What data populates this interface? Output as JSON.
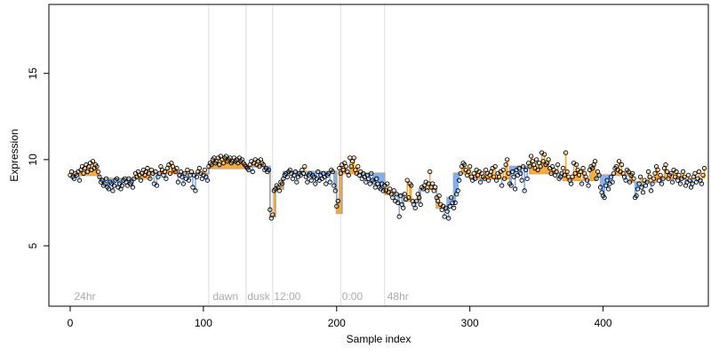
{
  "chart_data": {
    "type": "scatter",
    "xlabel": "Sample index",
    "ylabel": "Expression",
    "xlim": [
      -16,
      479
    ],
    "ylim": [
      1.5,
      19.0
    ],
    "x_ticks": [
      0,
      100,
      200,
      300,
      400
    ],
    "y_ticks": [
      5,
      10,
      15
    ],
    "grid": false,
    "legend": "none",
    "segment_boundaries": [
      104,
      132,
      152,
      203,
      236
    ],
    "segment_labels": [
      {
        "x": 3,
        "text": "24hr"
      },
      {
        "x": 107,
        "text": "dawn"
      },
      {
        "x": 133,
        "text": "dusk"
      },
      {
        "x": 153,
        "text": "12:00"
      },
      {
        "x": 204,
        "text": "0:00"
      },
      {
        "x": 238,
        "text": "48hr"
      }
    ],
    "baseline_levels": [
      {
        "from": 0,
        "to": 22,
        "value": 9.1
      },
      {
        "from": 22,
        "to": 60,
        "value": 8.9
      },
      {
        "from": 60,
        "to": 104,
        "value": 9.2
      },
      {
        "from": 104,
        "to": 132,
        "value": 9.5
      },
      {
        "from": 132,
        "to": 150,
        "value": 9.6
      },
      {
        "from": 150,
        "to": 154,
        "value": 6.7
      },
      {
        "from": 154,
        "to": 160,
        "value": 8.3
      },
      {
        "from": 160,
        "to": 200,
        "value": 9.3
      },
      {
        "from": 200,
        "to": 204,
        "value": 6.9
      },
      {
        "from": 204,
        "to": 236,
        "value": 9.2
      },
      {
        "from": 236,
        "to": 250,
        "value": 8.0
      },
      {
        "from": 250,
        "to": 262,
        "value": 7.6
      },
      {
        "from": 262,
        "to": 275,
        "value": 8.3
      },
      {
        "from": 275,
        "to": 283,
        "value": 7.2
      },
      {
        "from": 283,
        "to": 288,
        "value": 7.8
      },
      {
        "from": 288,
        "to": 300,
        "value": 9.2
      },
      {
        "from": 300,
        "to": 330,
        "value": 8.9
      },
      {
        "from": 330,
        "to": 345,
        "value": 9.6
      },
      {
        "from": 345,
        "to": 370,
        "value": 9.2
      },
      {
        "from": 370,
        "to": 395,
        "value": 8.8
      },
      {
        "from": 395,
        "to": 420,
        "value": 9.1
      },
      {
        "from": 420,
        "to": 440,
        "value": 8.7
      },
      {
        "from": 440,
        "to": 462,
        "value": 8.9
      }
    ],
    "series": [
      {
        "values": [
          9.1,
          9.3,
          9.0,
          8.9,
          9.2,
          9.1,
          9.3,
          8.8,
          9.4,
          9.6,
          9.2,
          9.5,
          9.7,
          9.3,
          9.6,
          9.8,
          9.4,
          9.9,
          9.5,
          9.7,
          9.6,
          9.3,
          9.0,
          8.7,
          8.8,
          8.5,
          8.6,
          8.9,
          8.4,
          8.3,
          8.7,
          8.6,
          8.2,
          8.5,
          8.8,
          8.9,
          8.4,
          8.6,
          8.3,
          8.5,
          8.8,
          8.9,
          8.7,
          8.5,
          8.9,
          8.6,
          8.7,
          8.4,
          8.9,
          9.2,
          9.0,
          9.3,
          9.1,
          8.8,
          9.2,
          9.4,
          9.1,
          9.3,
          9.5,
          9.2,
          8.9,
          9.4,
          9.2,
          8.6,
          9.3,
          8.5,
          9.0,
          9.2,
          9.6,
          9.4,
          9.1,
          9.3,
          8.9,
          9.5,
          9.7,
          9.2,
          9.8,
          9.6,
          9.4,
          9.3,
          9.5,
          8.7,
          9.1,
          9.3,
          9.0,
          8.6,
          9.2,
          8.9,
          9.4,
          8.8,
          9.1,
          9.3,
          8.4,
          9.1,
          8.2,
          9.0,
          9.3,
          9.5,
          9.2,
          8.9,
          9.1,
          9.4,
          9.0,
          8.8,
          9.6,
          9.8,
          9.7,
          10.0,
          10.1,
          9.8,
          9.9,
          10.1,
          9.7,
          10.2,
          10.0,
          9.8,
          10.1,
          10.2,
          9.9,
          10.0,
          10.1,
          9.8,
          9.9,
          10.1,
          9.9,
          10.0,
          9.8,
          10.1,
          9.9,
          10.0,
          9.8,
          9.7,
          9.6,
          9.5,
          9.4,
          9.7,
          9.9,
          9.3,
          9.8,
          10.0,
          9.7,
          9.9,
          9.6,
          10.0,
          9.8,
          9.7,
          9.4,
          9.5,
          9.3,
          9.4,
          7.1,
          6.6,
          6.8,
          8.2,
          8.3,
          8.5,
          8.4,
          8.2,
          8.7,
          8.6,
          8.9,
          9.1,
          9.2,
          9.0,
          9.3,
          9.4,
          9.2,
          8.9,
          9.1,
          9.3,
          8.7,
          9.0,
          9.2,
          9.1,
          9.4,
          9.2,
          9.6,
          9.0,
          8.7,
          9.1,
          9.2,
          8.8,
          9.1,
          9.0,
          8.6,
          8.9,
          9.3,
          8.8,
          9.1,
          8.9,
          9.2,
          9.0,
          8.6,
          9.1,
          9.2,
          8.7,
          9.4,
          9.3,
          8.5,
          8.2,
          7.3,
          7.6,
          9.5,
          9.2,
          9.7,
          9.4,
          9.8,
          9.6,
          9.3,
          9.1,
          10.1,
          9.6,
          9.9,
          10.1,
          9.4,
          9.2,
          9.6,
          9.1,
          9.3,
          8.9,
          9.2,
          9.0,
          8.7,
          9.1,
          8.9,
          8.6,
          9.2,
          8.8,
          8.7,
          8.4,
          8.9,
          8.6,
          8.4,
          8.3,
          8.6,
          8.2,
          8.5,
          8.2,
          8.6,
          8.1,
          8.3,
          8.0,
          7.8,
          8.2,
          7.6,
          8.0,
          7.5,
          6.7,
          7.9,
          7.4,
          7.2,
          8.0,
          7.7,
          8.8,
          7.8,
          8.6,
          8.5,
          7.6,
          7.4,
          7.2,
          7.6,
          8.0,
          7.8,
          7.4,
          8.4,
          8.3,
          8.5,
          8.7,
          8.2,
          8.6,
          9.3,
          8.4,
          8.6,
          8.2,
          8.4,
          7.8,
          7.6,
          7.9,
          7.4,
          7.1,
          7.3,
          6.7,
          7.2,
          7.0,
          6.6,
          7.3,
          7.8,
          7.5,
          7.2,
          7.5,
          8.0,
          8.2,
          8.8,
          9.2,
          9.6,
          9.8,
          9.7,
          9.4,
          9.1,
          9.3,
          9.6,
          9.0,
          8.8,
          9.2,
          8.9,
          9.4,
          9.1,
          9.3,
          8.7,
          9.2,
          9.0,
          8.9,
          9.4,
          9.2,
          8.8,
          9.1,
          9.3,
          9.5,
          9.0,
          9.6,
          8.8,
          9.2,
          9.0,
          9.3,
          8.5,
          9.4,
          8.9,
          9.7,
          10.0,
          9.2,
          8.6,
          8.5,
          9.3,
          9.0,
          8.3,
          9.4,
          9.1,
          9.5,
          9.2,
          8.8,
          9.6,
          8.2,
          9.4,
          8.9,
          9.8,
          9.6,
          10.2,
          9.9,
          9.7,
          9.5,
          10.0,
          9.4,
          9.8,
          9.6,
          10.4,
          9.9,
          10.3,
          9.7,
          9.8,
          10.0,
          9.5,
          9.2,
          9.6,
          9.4,
          9.1,
          9.3,
          9.7,
          8.9,
          9.0,
          9.2,
          9.5,
          9.1,
          10.4,
          9.3,
          9.0,
          8.8,
          8.6,
          9.0,
          9.8,
          9.2,
          9.7,
          9.4,
          9.1,
          9.3,
          8.6,
          9.5,
          9.2,
          9.0,
          8.8,
          8.5,
          9.4,
          9.6,
          9.5,
          9.7,
          9.9,
          8.9,
          9.3,
          9.1,
          8.4,
          8.1,
          7.9,
          7.8,
          8.5,
          8.8,
          8.3,
          8.6,
          9.0,
          8.7,
          9.2,
          9.5,
          9.6,
          9.4,
          9.9,
          9.3,
          9.7,
          9.2,
          9.0,
          8.8,
          9.4,
          9.3,
          8.7,
          9.1,
          9.2,
          8.9,
          7.8,
          7.9,
          8.3,
          8.6,
          9.0,
          8.4,
          8.1,
          8.8,
          8.5,
          8.7,
          9.3,
          9.0,
          8.2,
          8.6,
          8.9,
          9.2,
          9.6,
          9.4,
          8.8,
          9.1,
          8.6,
          8.9,
          9.5,
          9.7,
          9.3,
          8.9,
          9.1,
          9.2,
          8.7,
          9.4,
          9.0,
          9.3,
          8.8,
          9.1,
          8.6,
          8.9,
          9.3,
          9.0,
          8.5,
          8.7,
          9.1,
          8.8,
          8.4,
          8.6,
          9.0,
          9.2,
          8.7,
          8.9,
          9.3,
          8.8,
          8.6,
          9.1,
          9.5
        ]
      }
    ]
  },
  "colors": {
    "above_baseline": "#f4a93c",
    "below_baseline": "#87aee8",
    "baseline": "#aaaaaa",
    "segment_line": "#dddddd",
    "segment_label": "#aaaaaa",
    "point_stroke": "#000000",
    "axis": "#000000"
  }
}
